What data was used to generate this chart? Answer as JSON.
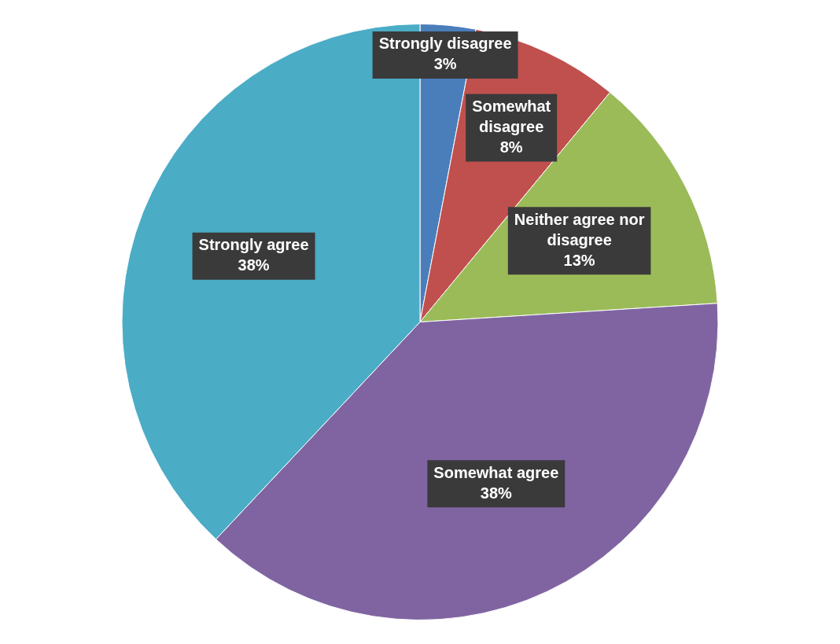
{
  "chart_data": {
    "type": "pie",
    "categories": [
      "Strongly disagree",
      "Somewhat disagree",
      "Neither agree nor disagree",
      "Somewhat agree",
      "Strongly agree"
    ],
    "values": [
      3,
      8,
      13,
      38,
      38
    ],
    "value_labels": [
      "3%",
      "8%",
      "13%",
      "38%",
      "38%"
    ],
    "colors": [
      "#4a7ebb",
      "#c0504d",
      "#9bbb59",
      "#8064a2",
      "#4bacc6"
    ],
    "legend": false
  }
}
